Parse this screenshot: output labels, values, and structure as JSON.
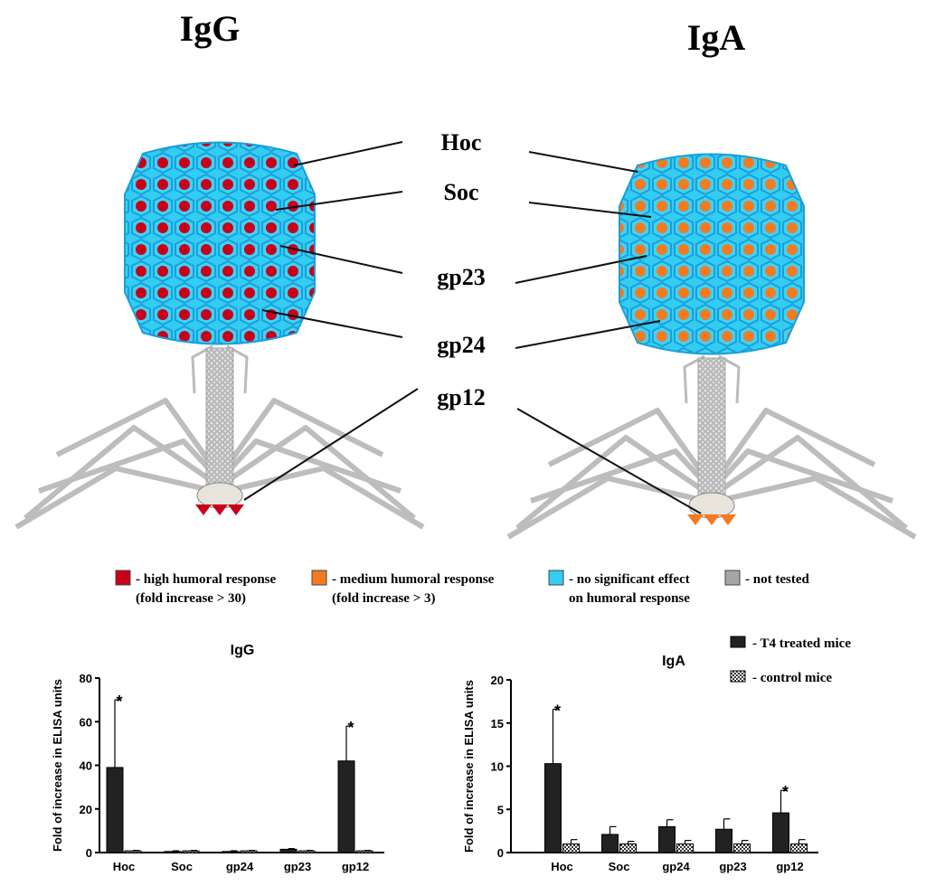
{
  "diagram": {
    "titles": [
      "IgG",
      "IgA"
    ],
    "labels": [
      "Hoc",
      "Soc",
      "gp23",
      "gp24",
      "gp12"
    ],
    "legend": [
      {
        "text": "- high humoral response",
        "subtext": "(fold increase > 30)",
        "color": "#c8001a"
      },
      {
        "text": "- medium humoral response",
        "subtext": "(fold increase > 3)",
        "color": "#f47a20"
      },
      {
        "text": "- no significant effect",
        "subtext": "on humoral response",
        "color": "#33ccf2"
      },
      {
        "text": "- not tested",
        "color": "#a6a6a6"
      }
    ]
  },
  "chart_data": [
    {
      "type": "bar",
      "title": "IgG",
      "ylabel": "Fold of increase in ELISA units",
      "categories": [
        "Hoc",
        "Soc",
        "gp24",
        "gp23",
        "gp12"
      ],
      "series": [
        {
          "color": "#222222",
          "values": [
            39,
            0.5,
            0.5,
            1.5,
            42
          ],
          "errors": [
            31,
            0.3,
            0.3,
            0.3,
            16
          ]
        },
        {
          "color": "checker",
          "values": [
            0.8,
            0.8,
            0.8,
            0.8,
            0.8
          ],
          "errors": [
            0.2,
            0.2,
            0.2,
            0.2,
            0.2
          ]
        }
      ],
      "significance": [
        "*",
        null,
        null,
        null,
        "*"
      ],
      "ylim": [
        0,
        80
      ],
      "yticks": [
        0,
        20,
        40,
        60,
        80
      ]
    },
    {
      "type": "bar",
      "title": "IgA",
      "ylabel": "Fold of increase in ELISA units",
      "categories": [
        "Hoc",
        "Soc",
        "gp24",
        "gp23",
        "gp12"
      ],
      "series": [
        {
          "name": "- T4 treated mice",
          "color": "#222222",
          "values": [
            10.3,
            2.1,
            3,
            2.7,
            4.6
          ],
          "errors": [
            6.3,
            0.9,
            0.8,
            1.2,
            2.6
          ]
        },
        {
          "name": "- control mice",
          "color": "checker",
          "values": [
            1,
            1,
            1,
            1,
            1
          ],
          "errors": [
            0.5,
            0.3,
            0.4,
            0.4,
            0.5
          ]
        }
      ],
      "significance": [
        "*",
        null,
        null,
        null,
        "*"
      ],
      "ylim": [
        0,
        20
      ],
      "yticks": [
        0,
        5,
        10,
        15,
        20
      ]
    }
  ]
}
